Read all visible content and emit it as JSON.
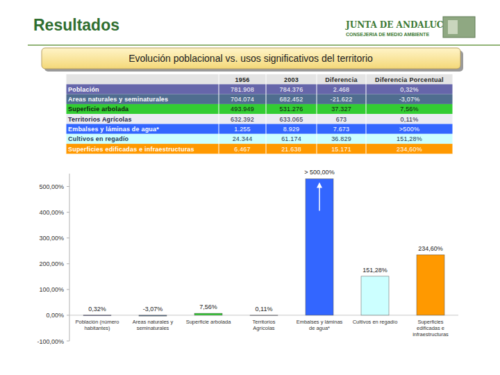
{
  "header": {
    "title": "Resultados",
    "organization": "JUNTA DE ANDALUCIA",
    "department": "CONSEJERIA DE MEDIO AMBIENTE"
  },
  "table": {
    "header": [
      "1956",
      "2003",
      "Diferencia",
      "Diferencia Porcentual"
    ],
    "rows": [
      [
        "Población",
        "781.908",
        "784.376",
        "2.468",
        "0,32%"
      ],
      [
        "Areas naturales y seminaturales",
        "704.074",
        "682.452",
        "-21.622",
        "-3,07%"
      ],
      [
        "Superficie arbolada",
        "493.949",
        "531.276",
        "37.327",
        "7,56%"
      ],
      [
        "Territorios Agrícolas",
        "632.392",
        "633.065",
        "673",
        "0,11%"
      ],
      [
        "Embalses y láminas de agua*",
        "1.255",
        "8.929",
        "7.673",
        ">500%"
      ],
      [
        "Cultivos en regadío",
        "24.344",
        "61.174",
        "36.829",
        "151,28%"
      ],
      [
        "Superficies edificadas e infraestructuras",
        "6.467",
        "21.638",
        "15.171",
        "234,60%"
      ]
    ]
  },
  "chart_data": {
    "type": "bar",
    "title": "Evolución poblacional vs. usos significativos del territorio",
    "categories": [
      "Población (número habitantes)",
      "Areas naturales y seminaturales",
      "Superficie arbolada",
      "Territorios Agrícolas",
      "Embalses y láminas de agua*",
      "Cultivos en regadío",
      "Superficies edificadas e infraestructuras"
    ],
    "values": [
      0.32,
      -3.07,
      7.56,
      0.11,
      530,
      151.28,
      234.6
    ],
    "value_labels": [
      "0,32%",
      "-3,07%",
      "7,56%",
      "0,11%",
      "> 500,00%",
      "151,28%",
      "234,60%"
    ],
    "colors": [
      "#6666aa",
      "#4f6d8f",
      "#33cc33",
      "#ccccdd",
      "#3366ff",
      "#ccffff",
      "#ff9900"
    ],
    "ylim": [
      -100,
      550
    ],
    "yticks": [
      {
        "value": -100,
        "label": "-100,00%"
      },
      {
        "value": 0,
        "label": "0,00%"
      },
      {
        "value": 100,
        "label": "100,00%"
      },
      {
        "value": 200,
        "label": "200,00%"
      },
      {
        "value": 300,
        "label": "300,00%"
      },
      {
        "value": 400,
        "label": "400,00%"
      },
      {
        "value": 500,
        "label": "500,00%"
      }
    ],
    "grid": false,
    "data_labels": true
  }
}
